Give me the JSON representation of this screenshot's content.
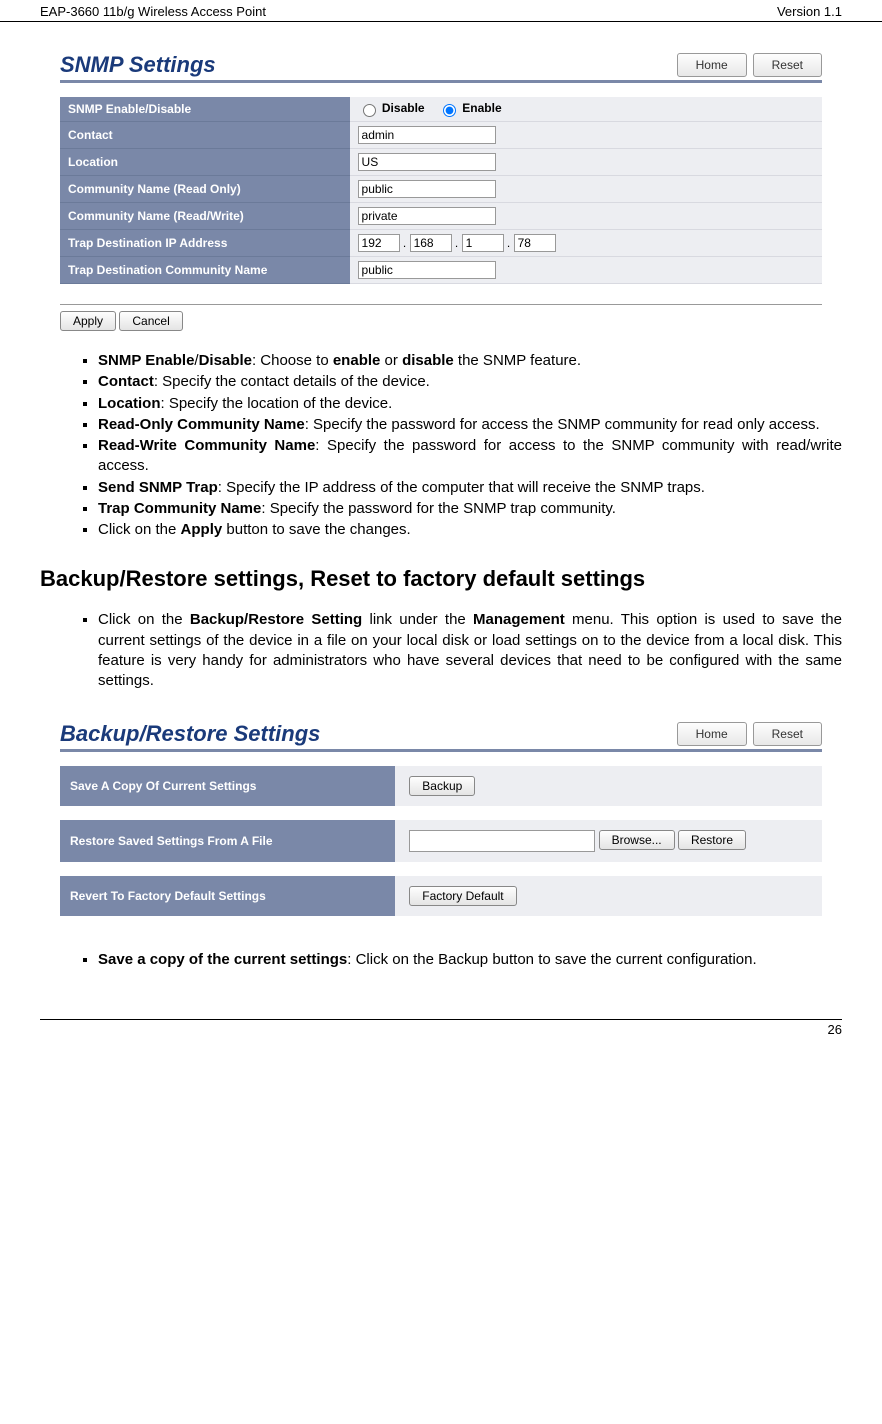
{
  "header": {
    "left": "EAP-3660  11b/g Wireless Access Point",
    "right": "Version 1.1"
  },
  "footer": {
    "page": "26"
  },
  "snmp_panel": {
    "title": "SNMP Settings",
    "home": "Home",
    "reset": "Reset",
    "rows": {
      "enable_label": "SNMP Enable/Disable",
      "disable": "Disable",
      "enable": "Enable",
      "contact_label": "Contact",
      "contact_val": "admin",
      "location_label": "Location",
      "location_val": "US",
      "cro_label": "Community Name (Read Only)",
      "cro_val": "public",
      "crw_label": "Community Name (Read/Write)",
      "crw_val": "private",
      "trap_ip_label": "Trap Destination IP Address",
      "ip1": "192",
      "ip2": "168",
      "ip3": "1",
      "ip4": "78",
      "trap_comm_label": "Trap Destination Community Name",
      "trap_comm_val": "public"
    },
    "apply": "Apply",
    "cancel": "Cancel"
  },
  "bullets1": {
    "b1a": "SNMP Enable",
    "b1b": "Disable",
    "b1c": ": Choose to ",
    "b1d": "enable",
    "b1e": " or ",
    "b1f": "disable",
    "b1g": " the SNMP feature.",
    "b2a": "Contact",
    "b2b": ": Specify the contact details of the device.",
    "b3a": "Location",
    "b3b": ": Specify the location of the device.",
    "b4a": "Read-Only Community Name",
    "b4b": ": Specify the password for access the SNMP community for read only access.",
    "b5a": "Read-Write Community Name",
    "b5b": ": Specify the password for access to the SNMP community with read/write access.",
    "b6a": "Send SNMP Trap",
    "b6b": ": Specify the IP address of the computer that will receive the SNMP traps.",
    "b7a": "Trap Community Name",
    "b7b": ": Specify the password for the SNMP trap community.",
    "b8a": "Click on the ",
    "b8b": "Apply",
    "b8c": " button to save the changes."
  },
  "section_title": "Backup/Restore settings, Reset to factory default settings",
  "bullets2": {
    "a1": "Click on the ",
    "a2": "Backup/Restore Setting",
    "a3": " link under the ",
    "a4": "Management",
    "a5": " menu. This option is used to save the current settings of the device in a file on your local disk or load settings on to the device from a local disk. This feature is very handy for administrators who have several devices that need to be configured with the same settings."
  },
  "br_panel": {
    "title": "Backup/Restore Settings",
    "home": "Home",
    "reset": "Reset",
    "r1_label": "Save A Copy Of Current Settings",
    "r1_btn": "Backup",
    "r2_label": "Restore Saved Settings From A File",
    "r2_browse": "Browse...",
    "r2_restore": "Restore",
    "r3_label": "Revert To Factory Default Settings",
    "r3_btn": "Factory Default"
  },
  "bullets3": {
    "a1": "Save a copy of the current settings",
    "a2": ": Click on the Backup button to save the current configuration."
  }
}
